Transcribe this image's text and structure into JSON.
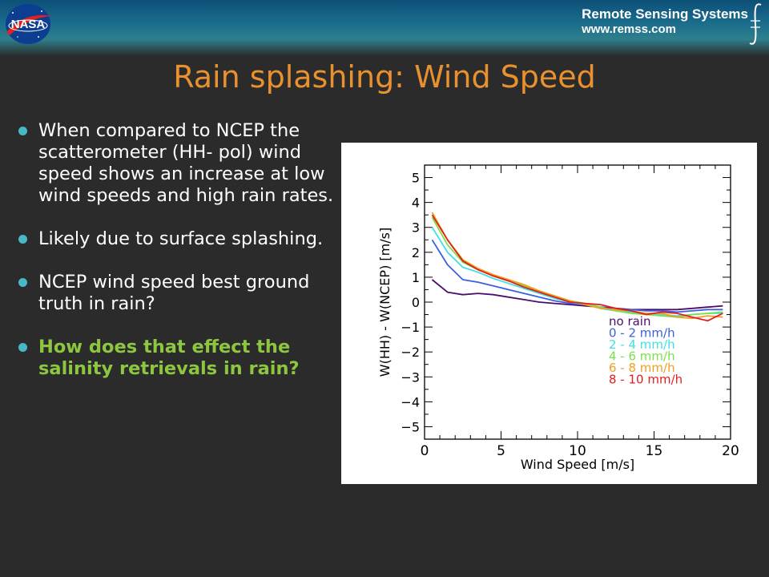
{
  "header": {
    "logo_text": "NASA",
    "org_name": "Remote Sensing Systems",
    "org_url": "www.remss.com"
  },
  "slide": {
    "title": "Rain splashing: Wind Speed",
    "bullets": [
      "When compared to NCEP the scatterometer (HH- pol) wind speed shows an increase at low wind speeds and high rain rates.",
      "Likely due to surface splashing.",
      "NCEP wind speed best ground truth in rain?",
      "How does that effect the salinity retrievals in rain?"
    ]
  },
  "colors": {
    "title": "#e8912e",
    "highlight": "#8dc63f",
    "bullet_dot": "#48b8c8"
  },
  "chart_data": {
    "type": "line",
    "xlabel": "Wind Speed [m/s]",
    "ylabel": "W(HH) - W(NCEP) [m/s]",
    "xlim": [
      0,
      20
    ],
    "ylim": [
      -5.5,
      5.5
    ],
    "xticks": [
      0,
      5,
      10,
      15,
      20
    ],
    "yticks": [
      5,
      4,
      3,
      2,
      1,
      0,
      -1,
      -2,
      -3,
      -4,
      -5
    ],
    "ytick_labels": [
      "5",
      "4",
      "3",
      "2",
      "1",
      "0",
      "−1",
      "−2",
      "−3",
      "−4",
      "−5"
    ],
    "legend_position": "lower-right",
    "x": [
      0.5,
      1.5,
      2.5,
      3.5,
      4.5,
      5.5,
      6.5,
      7.5,
      8.5,
      9.5,
      10.5,
      11.5,
      12.5,
      13.5,
      14.5,
      15.5,
      16.5,
      17.5,
      18.5,
      19.5
    ],
    "series": [
      {
        "name": "no rain",
        "color": "#4b0f6b",
        "values": [
          0.9,
          0.4,
          0.3,
          0.35,
          0.3,
          0.2,
          0.1,
          0.0,
          -0.05,
          -0.1,
          -0.15,
          -0.2,
          -0.25,
          -0.3,
          -0.3,
          -0.3,
          -0.3,
          -0.25,
          -0.2,
          -0.15
        ]
      },
      {
        "name": "0 - 2 mm/h",
        "color": "#3a5fe0",
        "values": [
          2.5,
          1.5,
          0.9,
          0.8,
          0.65,
          0.5,
          0.35,
          0.2,
          0.05,
          -0.05,
          -0.1,
          -0.2,
          -0.3,
          -0.3,
          -0.35,
          -0.35,
          -0.4,
          -0.35,
          -0.3,
          -0.3
        ]
      },
      {
        "name": "2 - 4 mm/h",
        "color": "#40e0e0",
        "values": [
          3.0,
          2.0,
          1.4,
          1.2,
          0.95,
          0.75,
          0.55,
          0.35,
          0.15,
          0.0,
          -0.1,
          -0.25,
          -0.35,
          -0.4,
          -0.45,
          -0.5,
          -0.55,
          -0.5,
          -0.45,
          -0.45
        ]
      },
      {
        "name": "4 - 6 mm/h",
        "color": "#7ee04a",
        "values": [
          3.4,
          2.3,
          1.6,
          1.3,
          1.05,
          0.85,
          0.65,
          0.45,
          0.25,
          0.05,
          -0.05,
          -0.2,
          -0.35,
          -0.45,
          -0.5,
          -0.55,
          -0.6,
          -0.5,
          -0.45,
          -0.4
        ]
      },
      {
        "name": "6 - 8 mm/h",
        "color": "#f0a020",
        "values": [
          3.6,
          2.5,
          1.7,
          1.35,
          1.1,
          0.9,
          0.7,
          0.45,
          0.25,
          0.05,
          -0.1,
          -0.25,
          -0.3,
          -0.35,
          -0.45,
          -0.45,
          -0.6,
          -0.65,
          -0.55,
          -0.6
        ]
      },
      {
        "name": "8 - 10 mm/h",
        "color": "#e02020",
        "values": [
          3.5,
          2.5,
          1.65,
          1.3,
          1.05,
          0.85,
          0.6,
          0.4,
          0.2,
          0.0,
          -0.05,
          -0.1,
          -0.25,
          -0.35,
          -0.5,
          -0.4,
          -0.45,
          -0.6,
          -0.75,
          -0.45
        ]
      }
    ]
  }
}
